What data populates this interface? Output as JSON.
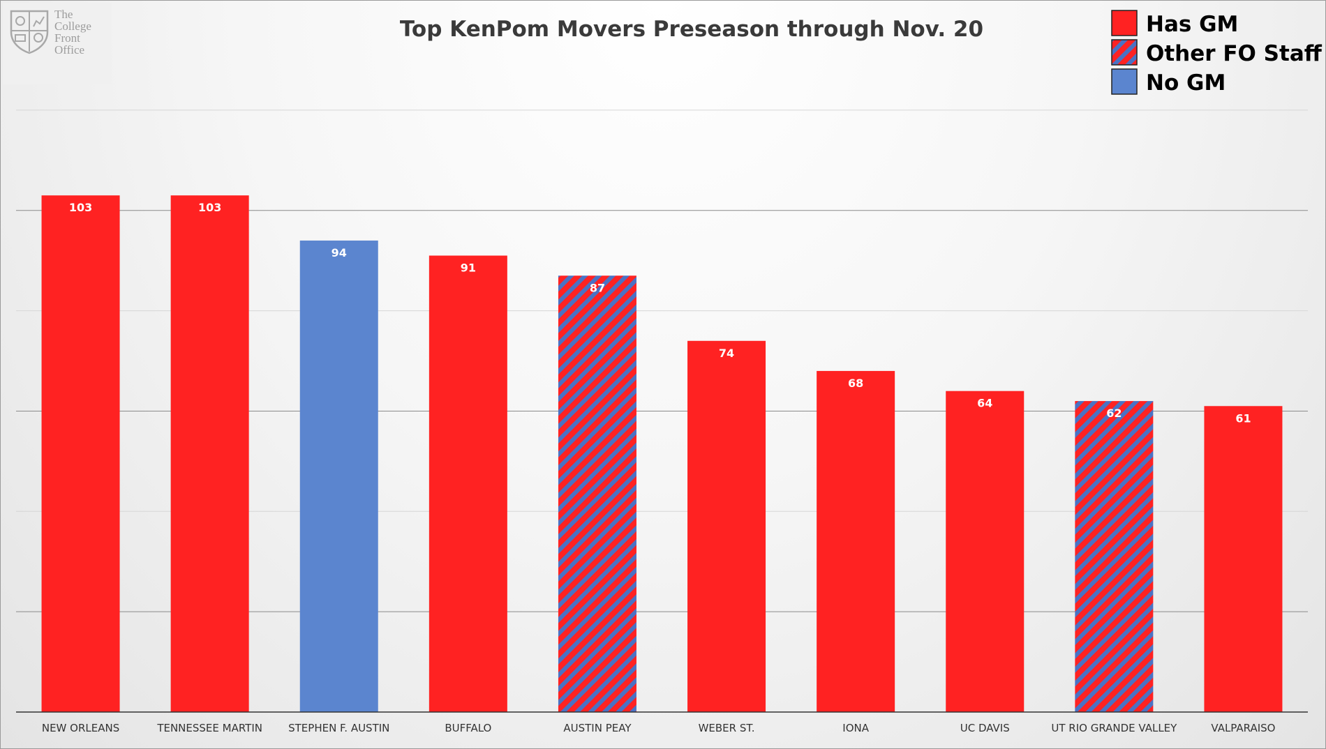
{
  "logo": {
    "lines": [
      "The",
      "College",
      "Front",
      "Office"
    ]
  },
  "chart_data": {
    "type": "bar",
    "title": "Top KenPom Movers Preseason through Nov. 20",
    "xlabel": "",
    "ylabel": "",
    "ylim": [
      0,
      130
    ],
    "grid": true,
    "legend_position": "top-right",
    "legend": [
      {
        "label": "Has GM",
        "key": "gm",
        "color": "#ff2222"
      },
      {
        "label": "Other FO Staff",
        "key": "fo",
        "color": "#ff2222",
        "stripe": "#4a72c4"
      },
      {
        "label": "No GM",
        "key": "none",
        "color": "#4f7fcf"
      }
    ],
    "categories": [
      "NEW ORLEANS",
      "TENNESSEE MARTIN",
      "STEPHEN F. AUSTIN",
      "BUFFALO",
      "AUSTIN PEAY",
      "WEBER ST.",
      "IONA",
      "UC DAVIS",
      "UT RIO GRANDE VALLEY",
      "VALPARAISO"
    ],
    "values": [
      103,
      103,
      94,
      91,
      87,
      74,
      68,
      64,
      62,
      61
    ],
    "groups": [
      "gm",
      "gm",
      "none",
      "gm",
      "fo",
      "gm",
      "gm",
      "gm",
      "fo",
      "gm"
    ]
  }
}
